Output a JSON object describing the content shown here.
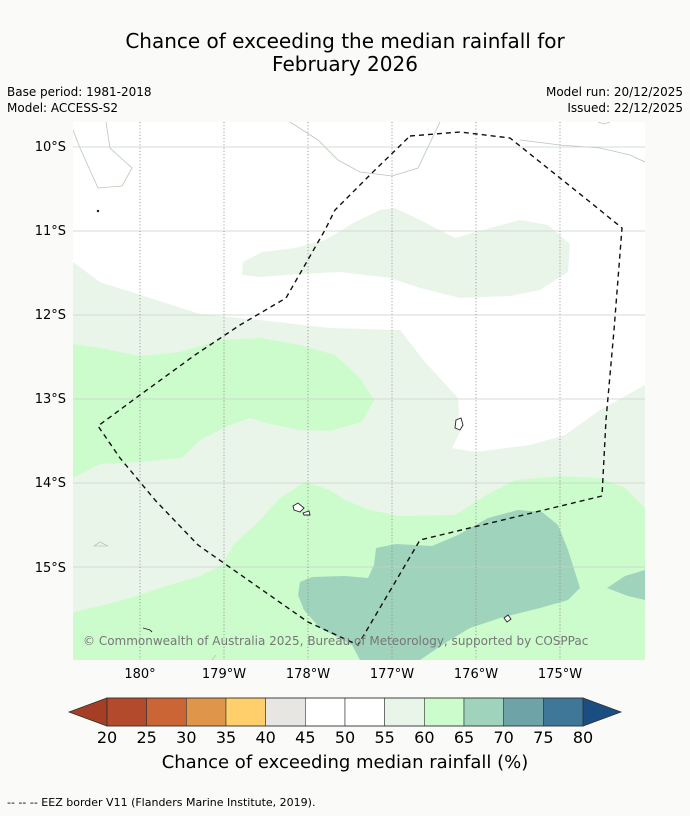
{
  "title_line1": "Chance of exceeding the median rainfall for",
  "title_line2": "February 2026",
  "meta": {
    "base_period": "Base period: 1981-2018",
    "model": "Model: ACCESS-S2",
    "model_run": "Model run: 20/12/2025",
    "issued": "Issued: 22/12/2025"
  },
  "map": {
    "lat_labels": [
      "10°S",
      "11°S",
      "12°S",
      "13°S",
      "14°S",
      "15°S"
    ],
    "lon_labels": [
      "180°",
      "179°W",
      "178°W",
      "177°W",
      "176°W",
      "175°W"
    ],
    "copyright": "© Commonwealth of Australia 2025, Bureau of Meteorology, supported by COSPPac",
    "colors": {
      "c45_50": "#ffffff",
      "c55_60": "#eaf5ea",
      "c60_65": "#ccfccc",
      "c65_70": "#9fd3bc",
      "c70_75": "#6ea3a8"
    }
  },
  "colorbar": {
    "ticks": [
      "20",
      "25",
      "30",
      "35",
      "40",
      "45",
      "50",
      "55",
      "60",
      "65",
      "70",
      "75",
      "80"
    ],
    "colors": [
      "#a63d25",
      "#b34a2c",
      "#cc6535",
      "#e0964a",
      "#fecf6a",
      "#e8e6e2",
      "#ffffff",
      "#ffffff",
      "#eaf5ea",
      "#ccfccc",
      "#9fd3bc",
      "#6ea3a8",
      "#3f7799",
      "#1a4e80"
    ],
    "label": "Chance of exceeding median rainfall (%)"
  },
  "footer": "-- -- -- EEZ border V11 (Flanders Marine Institute, 2019)."
}
